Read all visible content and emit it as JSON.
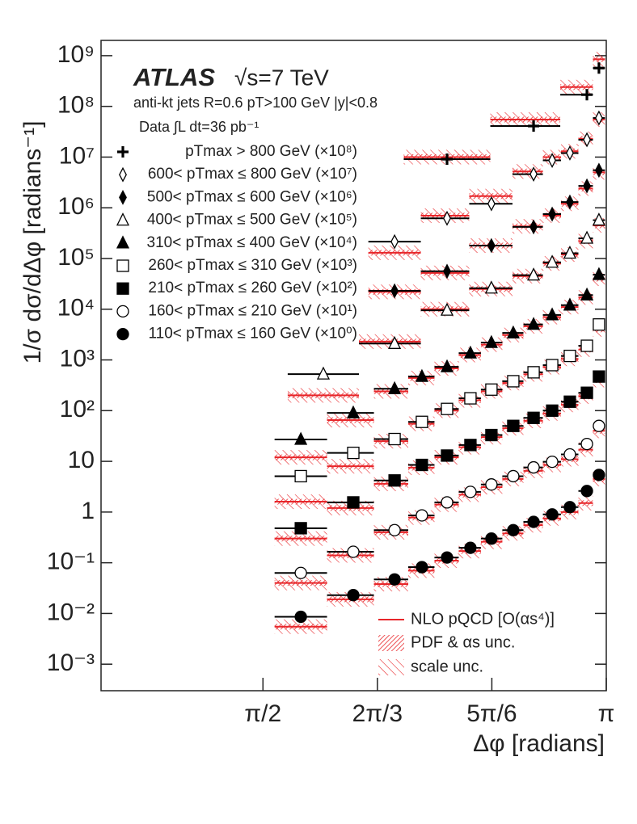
{
  "chart_data": {
    "type": "scatter",
    "title": "ATLAS",
    "subtitle": "√s=7 TeV",
    "annotations": [
      "anti-kt jets R=0.6   pT>100 GeV   |y|<0.8",
      "Data ∫L dt=36 pb⁻¹"
    ],
    "xlabel": "Δφ [radians]",
    "ylabel": "1/σ dσ/dΔφ [radians⁻¹]",
    "log_y": true,
    "xlim": [
      0.83,
      3.1416
    ],
    "ylim": [
      0.0003,
      2000000000
    ],
    "xticks": [
      {
        "value": 1.5708,
        "label": "π/2"
      },
      {
        "value": 2.0944,
        "label": "2π/3"
      },
      {
        "value": 2.618,
        "label": "5π/6"
      },
      {
        "value": 3.1416,
        "label": "π"
      }
    ],
    "yticks": [
      {
        "value": 0.001,
        "label": "10⁻³"
      },
      {
        "value": 0.01,
        "label": "10⁻²"
      },
      {
        "value": 0.1,
        "label": "10⁻¹"
      },
      1,
      10,
      {
        "value": 100,
        "label": "10²"
      },
      {
        "value": 1000,
        "label": "10³"
      },
      {
        "value": 10000,
        "label": "10⁴"
      },
      {
        "value": 100000,
        "label": "10⁵"
      },
      {
        "value": 1000000,
        "label": "10⁶"
      },
      {
        "value": 10000000,
        "label": "10⁷"
      },
      {
        "value": 100000000,
        "label": "10⁸"
      },
      {
        "value": 1000000000,
        "label": "10⁹"
      }
    ],
    "nlo_color": "#e8262a",
    "nlo_legend": [
      "NLO pQCD [O(αs⁴)]",
      "PDF & αs unc.",
      "scale unc."
    ],
    "series": [
      {
        "name": "pTmax > 800 GeV (×10⁸)",
        "marker": "plus",
        "color": "#000000",
        "x": [
          2.413,
          2.809,
          3.053,
          3.108
        ],
        "values": [
          9100000,
          41000000,
          170000000,
          570000000
        ],
        "nlo": [
          10000000,
          55000000,
          240000000,
          850000000
        ]
      },
      {
        "name": "600< pTmax ≤ 800 GeV (×10⁷)",
        "marker": "diamond-open",
        "color": "#000000",
        "x": [
          2.173,
          2.413,
          2.616,
          2.809,
          2.894,
          2.975,
          3.053,
          3.108
        ],
        "values": [
          215000,
          620000,
          1200000,
          4600000,
          8600000,
          12000000,
          22000000,
          59000000
        ],
        "nlo": [
          130000,
          700000,
          1700000,
          5200000,
          10000000,
          13000000,
          23000000,
          55000000
        ]
      },
      {
        "name": "500< pTmax ≤ 600 GeV (×10⁶)",
        "marker": "diamond",
        "color": "#000000",
        "x": [
          2.173,
          2.413,
          2.616,
          2.809,
          2.894,
          2.975,
          3.053,
          3.108
        ],
        "values": [
          23000,
          56000,
          180000,
          420000,
          750000,
          1300000,
          2700000,
          5500000
        ],
        "nlo": [
          22000,
          52000,
          180000,
          430000,
          700000,
          1200000,
          2400000,
          5000000
        ]
      },
      {
        "name": "400< pTmax ≤ 500 GeV (×10⁵)",
        "marker": "triangle-open",
        "color": "#000000",
        "x": [
          1.847,
          2.173,
          2.413,
          2.616,
          2.809,
          2.894,
          2.975,
          3.053,
          3.108
        ],
        "values": [
          525,
          2100,
          9500,
          26000,
          47000,
          84000,
          127000,
          250000,
          570000
        ],
        "nlo": [
          200,
          2300,
          10000,
          25000,
          45000,
          80000,
          120000,
          220000,
          450000
        ]
      },
      {
        "name": "310< pTmax ≤ 400 GeV (×10⁴)",
        "marker": "triangle",
        "color": "#000000",
        "x": [
          1.744,
          1.984,
          2.173,
          2.298,
          2.413,
          2.52,
          2.616,
          2.716,
          2.809,
          2.894,
          2.975,
          3.053,
          3.108
        ],
        "values": [
          27,
          90,
          270,
          470,
          730,
          1360,
          2200,
          3400,
          5000,
          7700,
          12000,
          19000,
          48000
        ],
        "nlo": [
          12,
          65,
          240,
          440,
          680,
          1250,
          2000,
          3100,
          4600,
          7000,
          11000,
          17000,
          40000
        ]
      },
      {
        "name": "260< pTmax ≤ 310 GeV (×10³)",
        "marker": "square-open",
        "color": "#000000",
        "x": [
          1.744,
          1.984,
          2.173,
          2.298,
          2.413,
          2.52,
          2.616,
          2.716,
          2.809,
          2.894,
          2.975,
          3.053,
          3.108
        ],
        "values": [
          5.1,
          14.7,
          27.5,
          60,
          108,
          175,
          260,
          380,
          570,
          790,
          1200,
          1900,
          5000
        ],
        "nlo": [
          1.6,
          8,
          25,
          55,
          100,
          160,
          240,
          350,
          520,
          720,
          1050,
          1600,
          4000
        ]
      },
      {
        "name": "210< pTmax ≤ 260 GeV (×10²)",
        "marker": "square",
        "color": "#000000",
        "x": [
          1.744,
          1.984,
          2.173,
          2.298,
          2.413,
          2.52,
          2.616,
          2.716,
          2.809,
          2.894,
          2.975,
          3.053,
          3.108
        ],
        "values": [
          0.48,
          1.55,
          4.2,
          8.5,
          13,
          21,
          33,
          50,
          72,
          100,
          150,
          225,
          470
        ],
        "nlo": [
          0.3,
          1.2,
          3.6,
          7.5,
          12,
          19,
          30,
          45,
          63,
          88,
          130,
          190,
          400
        ]
      },
      {
        "name": "160< pTmax ≤ 210 GeV (×10¹)",
        "marker": "circle-open",
        "color": "#000000",
        "x": [
          1.744,
          1.984,
          2.173,
          2.298,
          2.413,
          2.52,
          2.616,
          2.716,
          2.809,
          2.894,
          2.975,
          3.053,
          3.108
        ],
        "values": [
          0.063,
          0.165,
          0.44,
          0.86,
          1.55,
          2.5,
          3.5,
          5.1,
          7.6,
          9.8,
          13.7,
          22,
          50
        ],
        "nlo": [
          0.04,
          0.14,
          0.4,
          0.78,
          1.4,
          2.2,
          3.1,
          4.5,
          6.5,
          8.5,
          11,
          17,
          40
        ]
      },
      {
        "name": "110< pTmax ≤ 160 GeV (×10⁰)",
        "marker": "circle",
        "color": "#000000",
        "x": [
          1.744,
          1.984,
          2.173,
          2.298,
          2.413,
          2.52,
          2.616,
          2.716,
          2.809,
          2.894,
          2.975,
          3.053,
          3.108
        ],
        "values": [
          0.0086,
          0.023,
          0.047,
          0.082,
          0.127,
          0.197,
          0.3,
          0.44,
          0.64,
          0.9,
          1.25,
          2.6,
          5.4
        ],
        "nlo": [
          0.0055,
          0.019,
          0.038,
          0.07,
          0.11,
          0.17,
          0.26,
          0.38,
          0.55,
          0.75,
          1.0,
          1.5,
          4.5
        ]
      }
    ]
  }
}
